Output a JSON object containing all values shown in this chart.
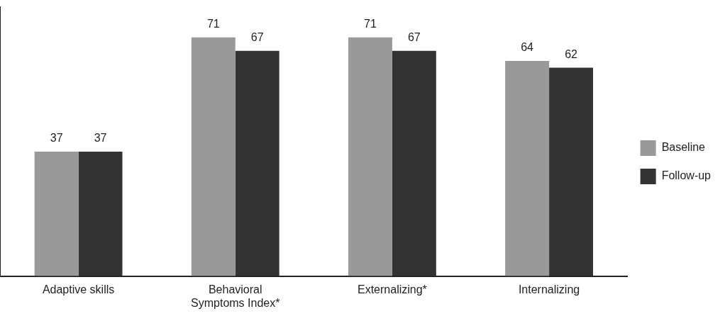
{
  "chart_data": {
    "type": "bar",
    "categories": [
      "Adaptive skills",
      "Behavioral Symptoms Index*",
      "Externalizing*",
      "Internalizing"
    ],
    "series": [
      {
        "name": "Baseline",
        "color": "#999999",
        "values": [
          37,
          71,
          71,
          64
        ]
      },
      {
        "name": "Follow-up",
        "color": "#333333",
        "values": [
          37,
          67,
          67,
          62
        ]
      }
    ],
    "ylim": [
      0,
      80
    ],
    "tick_labels": "x",
    "grid": false,
    "legend": "right",
    "data_labels": true
  }
}
